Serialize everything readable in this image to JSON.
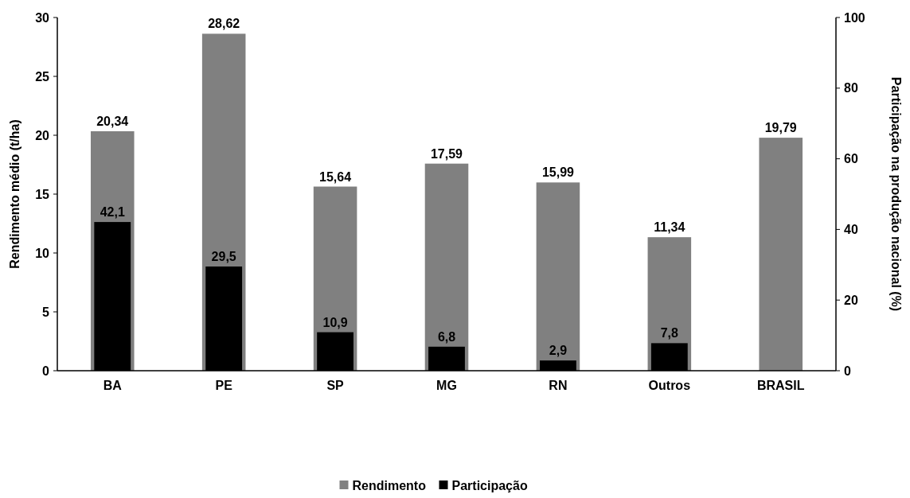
{
  "chart_data": {
    "type": "bar",
    "categories": [
      "BA",
      "PE",
      "SP",
      "MG",
      "RN",
      "Outros",
      "BRASIL"
    ],
    "series": [
      {
        "name": "Rendimento",
        "color": "#808080",
        "values": [
          20.34,
          28.62,
          15.64,
          17.59,
          15.99,
          11.34,
          19.79
        ],
        "value_labels": [
          "20,34",
          "28,62",
          "15,64",
          "17,59",
          "15,99",
          "11,34",
          "19,79"
        ]
      },
      {
        "name": "Participação",
        "color": "#000000",
        "axis": "y2",
        "values": [
          42.1,
          29.5,
          10.9,
          6.8,
          2.9,
          7.8,
          null
        ],
        "value_labels": [
          "42,1",
          "29,5",
          "10,9",
          "6,8",
          "2,9",
          "7,8",
          null
        ]
      }
    ],
    "ylabel": "Rendimento médio (t/ha)",
    "y2label": "Participação na produção nacional (%)",
    "ylim": [
      0,
      30
    ],
    "yticks": [
      0,
      5,
      10,
      15,
      20,
      25,
      30
    ],
    "y2lim": [
      0,
      100
    ],
    "y2ticks": [
      0,
      20,
      40,
      60,
      80,
      100
    ],
    "grid": false,
    "legend": "bottom"
  }
}
